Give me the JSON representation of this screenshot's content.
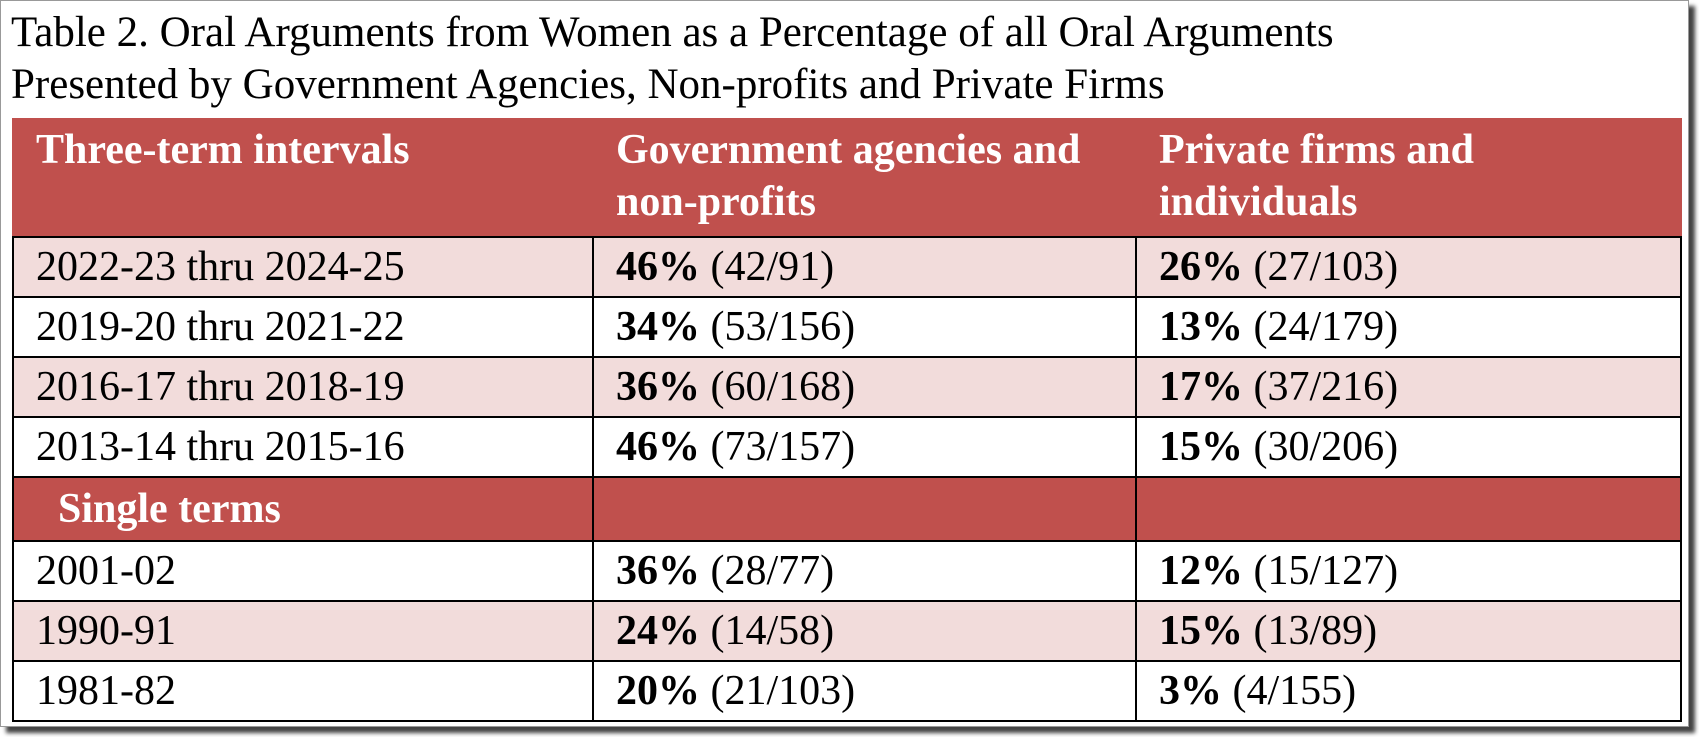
{
  "title": [
    "Table 2. Oral Arguments from Women as a Percentage of all Oral Arguments",
    "Presented by Government Agencies, Non-profits and Private Firms"
  ],
  "table": {
    "header": [
      "Three-term intervals",
      "Government agencies and non-profits",
      "Private firms and individuals"
    ],
    "interval_rows": [
      {
        "label": "2022-23 thru 2024-25",
        "government": {
          "percent": "46%",
          "count": "(42/91)"
        },
        "private": {
          "percent": "26%",
          "count": "(27/103)"
        }
      },
      {
        "label": "2019-20 thru 2021-22",
        "government": {
          "percent": "34%",
          "count": "(53/156)"
        },
        "private": {
          "percent": "13%",
          "count": "(24/179)"
        }
      },
      {
        "label": "2016-17 thru 2018-19",
        "government": {
          "percent": "36%",
          "count": "(60/168)"
        },
        "private": {
          "percent": "17%",
          "count": "(37/216)"
        }
      },
      {
        "label": "2013-14 thru 2015-16",
        "government": {
          "percent": "46%",
          "count": "(73/157)"
        },
        "private": {
          "percent": "15%",
          "count": "(30/206)"
        }
      }
    ],
    "section": "Single terms",
    "single_rows": [
      {
        "label": "2001-02",
        "government": {
          "percent": "36%",
          "count": "(28/77)"
        },
        "private": {
          "percent": "12%",
          "count": "(15/127)"
        }
      },
      {
        "label": "1990-91",
        "government": {
          "percent": "24%",
          "count": "(14/58)"
        },
        "private": {
          "percent": "15%",
          "count": "(13/89)"
        }
      },
      {
        "label": "1981-82",
        "government": {
          "percent": "20%",
          "count": "(21/103)"
        },
        "private": {
          "percent": "3%",
          "count": "(4/155)"
        }
      }
    ]
  }
}
